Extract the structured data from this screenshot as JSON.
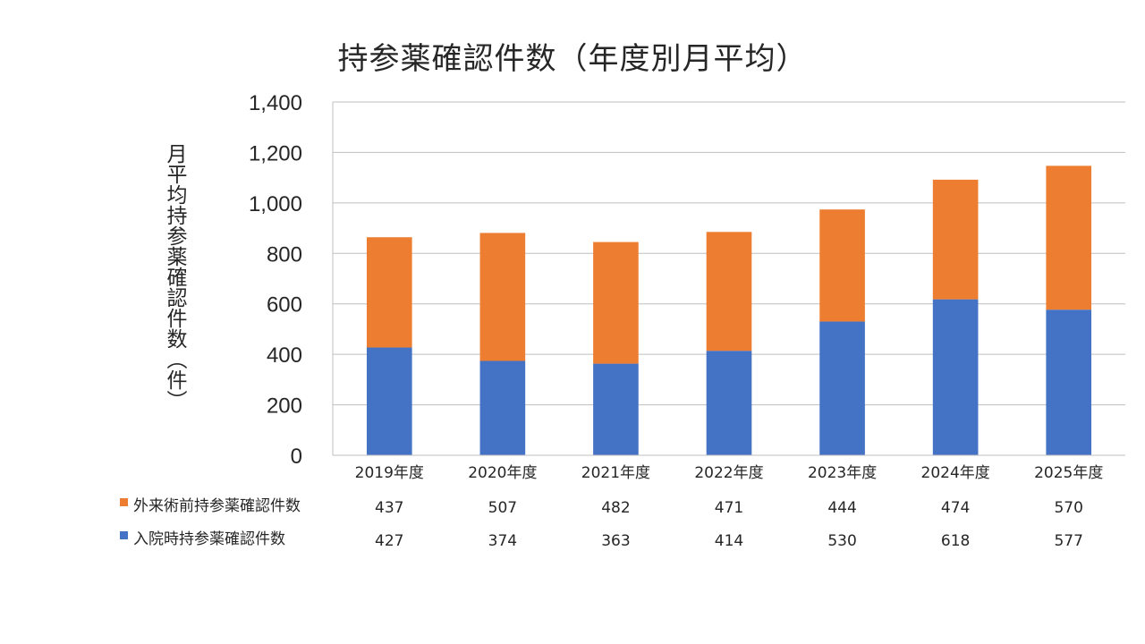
{
  "chart_data": {
    "type": "bar",
    "stacked": true,
    "title": "持参薬確認件数（年度別月平均）",
    "ylabel": "月平均持参薬確認件数（件）",
    "xlabel": "",
    "ylim": [
      0,
      1400
    ],
    "yticks": [
      0,
      200,
      400,
      600,
      800,
      1000,
      1200,
      1400
    ],
    "ytick_labels": [
      "0",
      "200",
      "400",
      "600",
      "800",
      "1,000",
      "1,200",
      "1,400"
    ],
    "grid": true,
    "legend": "data-table-left",
    "categories": [
      "2019年度",
      "2020年度",
      "2021年度",
      "2022年度",
      "2023年度",
      "2024年度",
      "2025年度"
    ],
    "series": [
      {
        "name": "入院時持参薬確認件数",
        "color": "#4472C4",
        "values": [
          427,
          374,
          363,
          414,
          530,
          618,
          577
        ]
      },
      {
        "name": "外来術前持参薬確認件数",
        "color": "#ED7D31",
        "values": [
          437,
          507,
          482,
          471,
          444,
          474,
          570
        ]
      }
    ],
    "table_order": [
      1,
      0
    ]
  }
}
